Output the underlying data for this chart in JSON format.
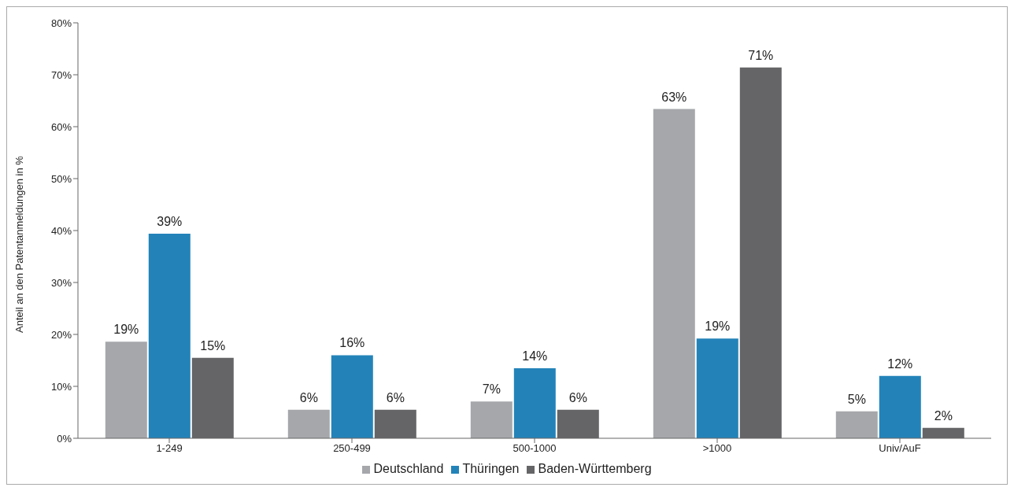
{
  "chart_data": {
    "type": "bar",
    "ylabel": "Anteil an den Patentanmeldungen in %",
    "categories": [
      "1-249",
      "250-499",
      "500-1000",
      ">1000",
      "Univ/AuF"
    ],
    "series": [
      {
        "name": "Deutschland",
        "color": "#a6a7ab",
        "values": [
          18.6,
          5.5,
          7.1,
          63.4,
          5.2
        ],
        "value_labels": [
          "19%",
          "6%",
          "7%",
          "63%",
          "5%"
        ]
      },
      {
        "name": "Thüringen",
        "color": "#2383b9",
        "values": [
          39.4,
          16.0,
          13.5,
          19.2,
          12.0
        ],
        "value_labels": [
          "39%",
          "16%",
          "14%",
          "19%",
          "12%"
        ]
      },
      {
        "name": "Baden-Württemberg",
        "color": "#656567",
        "values": [
          15.5,
          5.5,
          5.5,
          71.4,
          2.0
        ],
        "value_labels": [
          "15%",
          "6%",
          "6%",
          "71%",
          "2%"
        ]
      }
    ],
    "ylim": [
      0,
      80
    ],
    "yticks": [
      {
        "value": 0,
        "label": "0%"
      },
      {
        "value": 10,
        "label": "10%"
      },
      {
        "value": 20,
        "label": "20%"
      },
      {
        "value": 30,
        "label": "30%"
      },
      {
        "value": 40,
        "label": "40%"
      },
      {
        "value": 50,
        "label": "50%"
      },
      {
        "value": 60,
        "label": "60%"
      },
      {
        "value": 70,
        "label": "70%"
      },
      {
        "value": 80,
        "label": "80%"
      }
    ],
    "grid": false,
    "legend": "bottom"
  }
}
